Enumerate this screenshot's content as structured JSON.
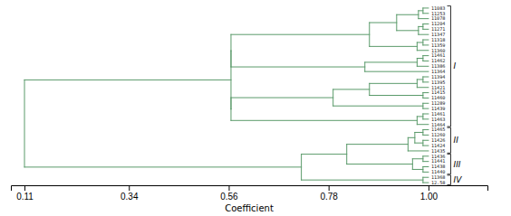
{
  "chart_data": {
    "type": "dendrogram",
    "xlabel": "Coefficient",
    "color": "#5a9a6a",
    "xlim": [
      0.08,
      1.13
    ],
    "xticks": [
      0.11,
      0.34,
      0.56,
      0.78,
      {
        "value": 1.0,
        "label": "1.00"
      }
    ],
    "leaf_value": 1.0,
    "tree": {
      "value": 0.11,
      "children": [
        {
          "value": 0.565,
          "children": [
            {
              "value": 0.565,
              "children": [
                {
                  "value": 0.87,
                  "children": [
                    {
                      "value": 0.93,
                      "children": [
                        {
                          "value": 0.978,
                          "children": [
                            {
                              "value": 0.988,
                              "children": [
                                "11083",
                                "11253"
                              ]
                            },
                            "11078"
                          ]
                        },
                        {
                          "value": 0.978,
                          "children": [
                            {
                              "value": 0.988,
                              "children": [
                                "11204",
                                "11271"
                              ]
                            },
                            "11347"
                          ]
                        }
                      ]
                    },
                    {
                      "value": 0.975,
                      "children": [
                        {
                          "value": 0.988,
                          "children": [
                            "11318",
                            "11359"
                          ]
                        },
                        "11360"
                      ]
                    }
                  ]
                },
                {
                  "value": 0.86,
                  "children": [
                    {
                      "value": 0.975,
                      "children": [
                        {
                          "value": 0.988,
                          "children": [
                            "11461",
                            "11462"
                          ]
                        },
                        "11386"
                      ]
                    },
                    "11364"
                  ]
                }
              ]
            },
            {
              "value": 0.565,
              "children": [
                {
                  "value": 0.79,
                  "children": [
                    {
                      "value": 0.87,
                      "children": [
                        {
                          "value": 0.975,
                          "children": [
                            {
                              "value": 0.988,
                              "children": [
                                "11394",
                                "11395"
                              ]
                            },
                            "11421"
                          ]
                        },
                        {
                          "value": 0.988,
                          "children": [
                            "11415",
                            "11460"
                          ]
                        }
                      ]
                    },
                    {
                      "value": 0.988,
                      "children": [
                        "11289",
                        "11439"
                      ]
                    }
                  ]
                },
                {
                  "value": 0.975,
                  "children": [
                    {
                      "value": 0.988,
                      "children": [
                        "11461",
                        "11463"
                      ]
                    },
                    "11464"
                  ]
                }
              ]
            }
          ]
        },
        {
          "value": 0.72,
          "children": [
            {
              "value": 0.82,
              "children": [
                {
                  "value": 0.955,
                  "children": [
                    {
                      "value": 0.97,
                      "children": [
                        {
                          "value": 0.988,
                          "children": [
                            "11465",
                            "11260"
                          ]
                        },
                        {
                          "value": 0.988,
                          "children": [
                            "11426",
                            "11424"
                          ]
                        }
                      ]
                    },
                    "11435"
                  ]
                },
                {
                  "value": 0.965,
                  "children": [
                    {
                      "value": 0.988,
                      "children": [
                        "11436",
                        "11441"
                      ]
                    },
                    {
                      "value": 0.988,
                      "children": [
                        "11438",
                        "11440"
                      ]
                    }
                  ]
                }
              ]
            },
            {
              "value": 0.988,
              "children": [
                "11368",
                "12.58"
              ]
            }
          ]
        }
      ]
    },
    "groups": [
      {
        "label": "I",
        "leaves": [
          0,
          22
        ]
      },
      {
        "label": "II",
        "leaves": [
          23,
          27
        ]
      },
      {
        "label": "III",
        "leaves": [
          28,
          31
        ]
      },
      {
        "label": "IV",
        "leaves": [
          32,
          33
        ]
      }
    ]
  }
}
